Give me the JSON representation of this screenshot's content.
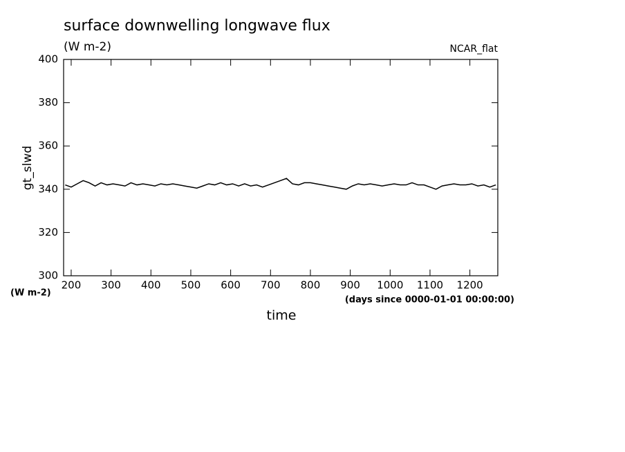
{
  "chart_data": {
    "type": "line",
    "title": "surface downwelling longwave flux",
    "subtitle": "(W m-2)",
    "annotation": "NCAR_flat",
    "y_label": "gt_slwd",
    "y_units": "(W m-2)",
    "x_label": "time",
    "x_units": "(days since 0000-01-01 00:00:00)",
    "xlim": [
      181,
      1270
    ],
    "ylim": [
      300,
      400
    ],
    "xticks": [
      200,
      300,
      400,
      500,
      600,
      700,
      800,
      900,
      1000,
      1100,
      1200
    ],
    "yticks": [
      300,
      320,
      340,
      360,
      380,
      400
    ],
    "x": [
      185,
      200,
      215,
      230,
      245,
      260,
      275,
      290,
      305,
      320,
      335,
      350,
      365,
      380,
      395,
      410,
      425,
      440,
      455,
      470,
      485,
      500,
      515,
      530,
      545,
      560,
      575,
      590,
      605,
      620,
      635,
      650,
      665,
      680,
      695,
      710,
      725,
      740,
      755,
      770,
      785,
      800,
      815,
      830,
      845,
      860,
      875,
      890,
      905,
      920,
      935,
      950,
      965,
      980,
      995,
      1010,
      1025,
      1040,
      1055,
      1070,
      1085,
      1100,
      1115,
      1130,
      1145,
      1160,
      1175,
      1190,
      1205,
      1220,
      1235,
      1250,
      1265
    ],
    "series": [
      {
        "color": "#000000",
        "values": [
          342,
          341,
          342.5,
          344,
          343,
          341.5,
          343,
          342,
          342.5,
          342,
          341.5,
          343,
          342,
          342.5,
          342,
          341.5,
          342.5,
          342,
          342.5,
          342,
          341.5,
          341,
          340.5,
          341.5,
          342.5,
          342,
          343,
          342,
          342.5,
          341.5,
          342.5,
          341.5,
          342,
          341,
          342,
          343,
          344,
          345,
          342.5,
          342,
          343,
          343,
          342.5,
          342,
          341.5,
          341,
          340.5,
          340,
          341.5,
          342.5,
          342,
          342.5,
          342,
          341.5,
          342,
          342.5,
          342,
          342,
          343,
          342,
          342,
          341,
          340,
          341.5,
          342,
          342.5,
          342,
          342,
          342.5,
          341.5,
          342,
          341,
          342
        ]
      }
    ]
  }
}
